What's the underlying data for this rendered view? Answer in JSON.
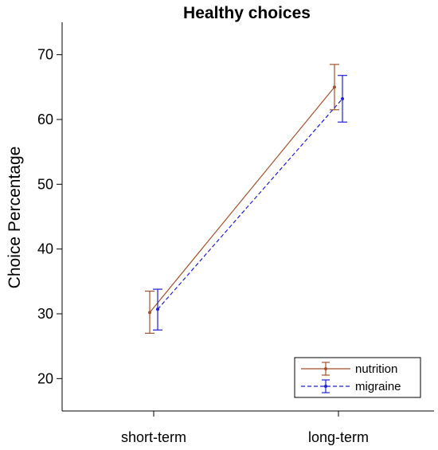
{
  "chart_data": {
    "type": "line",
    "title": "Healthy choices",
    "xlabel": "",
    "ylabel": "Choice Percentage",
    "categories": [
      "short-term",
      "long-term"
    ],
    "ylim": [
      15,
      75
    ],
    "yticks": [
      20,
      30,
      40,
      50,
      60,
      70
    ],
    "grid": false,
    "legend_position": "bottom-right",
    "series": [
      {
        "name": "nutrition",
        "color": "#a0522d",
        "line_style": "solid",
        "values": [
          30.2,
          65.0
        ],
        "error_low": [
          27.0,
          61.5
        ],
        "error_high": [
          33.5,
          68.5
        ]
      },
      {
        "name": "migraine",
        "color": "#1f1fd6",
        "line_style": "dashed",
        "values": [
          30.7,
          63.2
        ],
        "error_low": [
          27.5,
          59.6
        ],
        "error_high": [
          33.8,
          66.8
        ]
      }
    ]
  }
}
